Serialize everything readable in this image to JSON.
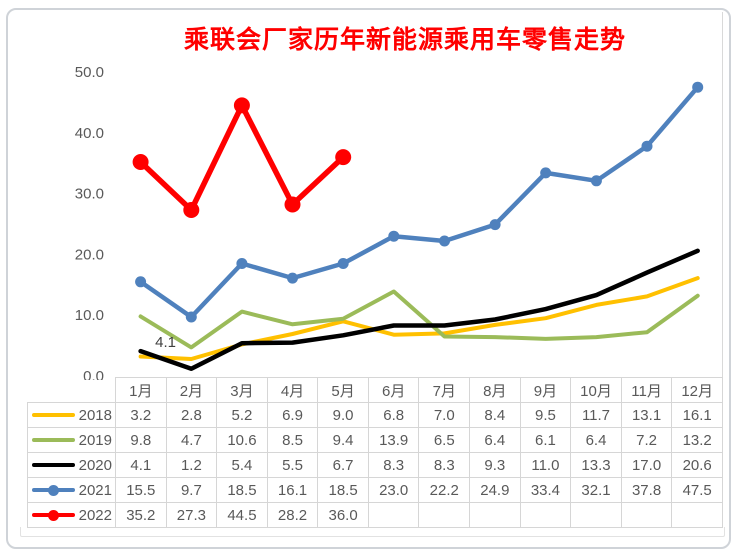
{
  "frame": {
    "border_color": "#cfd3d8",
    "background": "#ffffff"
  },
  "chart_data": {
    "type": "line",
    "title": "乘联会厂家历年新能源乘用车零售走势",
    "title_color": "#FF0000",
    "xlabel": "",
    "ylabel": "",
    "ylim": [
      0,
      50
    ],
    "grid": false,
    "legend_position": "table-left",
    "y_ticks": [
      "0.0",
      "10.0",
      "20.0",
      "30.0",
      "40.0",
      "50.0"
    ],
    "categories": [
      "1月",
      "2月",
      "3月",
      "4月",
      "5月",
      "6月",
      "7月",
      "8月",
      "9月",
      "10月",
      "11月",
      "12月"
    ],
    "series": [
      {
        "name": "2018",
        "color": "#FFC000",
        "marker": false,
        "values": [
          3.2,
          2.8,
          5.2,
          6.9,
          9.0,
          6.8,
          7.0,
          8.4,
          9.5,
          11.7,
          13.1,
          16.1
        ]
      },
      {
        "name": "2019",
        "color": "#9BBB59",
        "marker": false,
        "values": [
          9.8,
          4.7,
          10.6,
          8.5,
          9.4,
          13.9,
          6.5,
          6.4,
          6.1,
          6.4,
          7.2,
          13.2
        ]
      },
      {
        "name": "2020",
        "color": "#000000",
        "marker": false,
        "values": [
          4.1,
          1.2,
          5.4,
          5.5,
          6.7,
          8.3,
          8.3,
          9.3,
          11.0,
          13.3,
          17.0,
          20.6
        ]
      },
      {
        "name": "2021",
        "color": "#4F81BD",
        "marker": true,
        "values": [
          15.5,
          9.7,
          18.5,
          16.1,
          18.5,
          23.0,
          22.2,
          24.9,
          33.4,
          32.1,
          37.8,
          47.5
        ]
      },
      {
        "name": "2022",
        "color": "#FF0000",
        "marker": true,
        "values": [
          35.2,
          27.3,
          44.5,
          28.2,
          36.0
        ]
      }
    ],
    "annotation": {
      "text": "4.1",
      "series": "2020",
      "category": "1月"
    },
    "axis_label_color": "#595959",
    "table_text_color": "#595959",
    "table_border_color": "#d6d6d6"
  }
}
